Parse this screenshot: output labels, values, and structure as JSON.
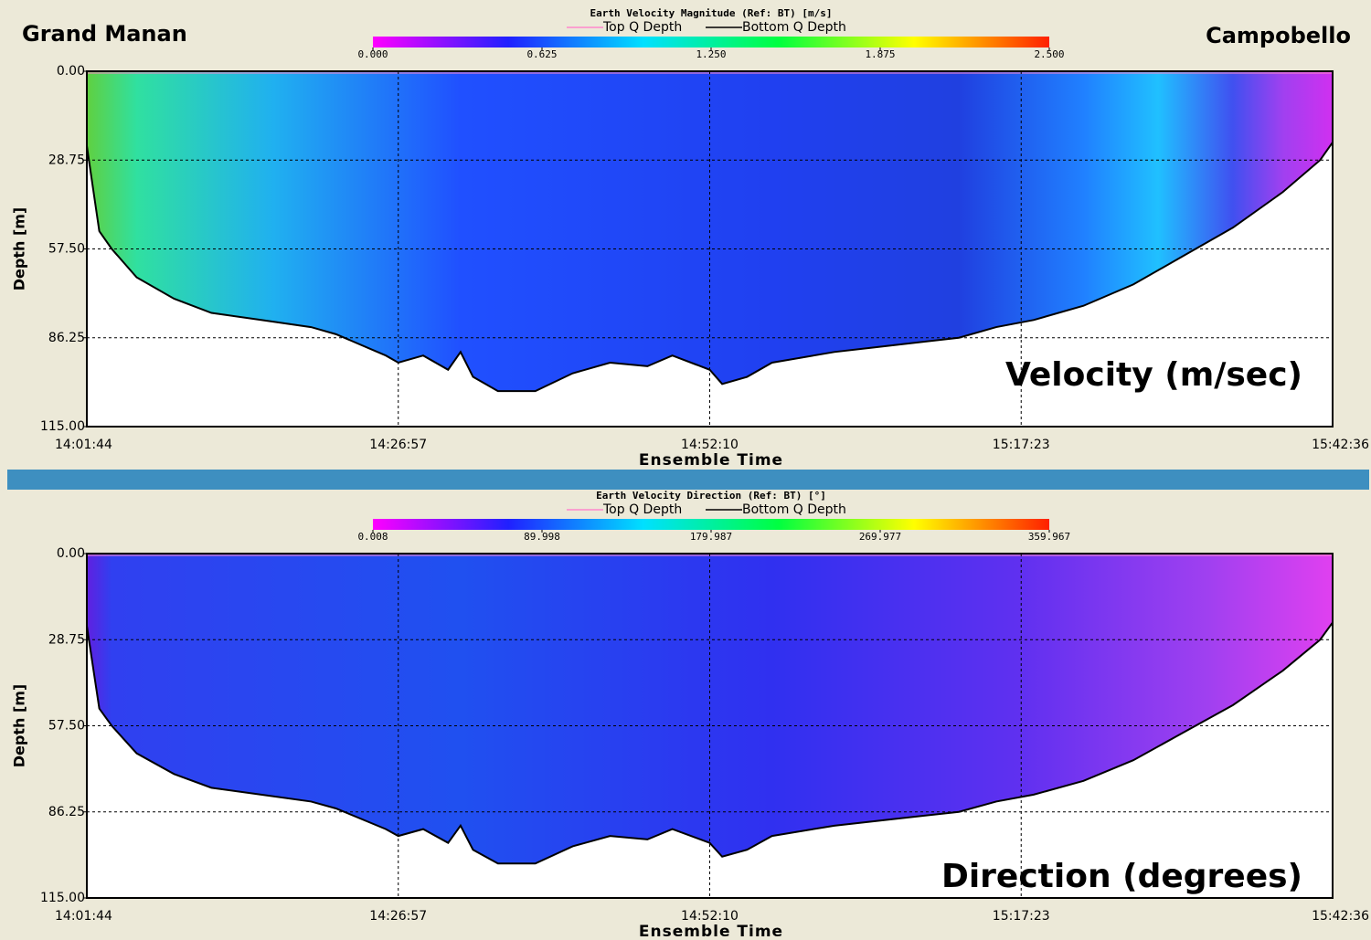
{
  "header": {
    "left": "Grand Manan",
    "right": "Campobello"
  },
  "chart_data": [
    {
      "type": "heatmap",
      "title": "Earth Velocity Magnitude (Ref: BT) [m/s]",
      "annotation": "Velocity (m/sec)",
      "x_label": "Ensemble Time",
      "y_label": "Depth [m]",
      "xticks": [
        "14:01:44",
        "14:26:57",
        "14:52:10",
        "15:17:23",
        "15:42:36"
      ],
      "ylim": [
        0,
        115
      ],
      "yticks": [
        {
          "value": 0,
          "label": "0.00"
        },
        28.75,
        {
          "value": 57.5,
          "label": "57.50"
        },
        86.25,
        {
          "value": 115,
          "label": "115.00"
        }
      ],
      "y_inverted": true,
      "grid": true,
      "series": [
        {
          "name": "Top Q Depth",
          "color": "#ff88cc"
        },
        {
          "name": "Bottom Q Depth",
          "color": "#000000"
        }
      ],
      "colorbar": {
        "lim": [
          0,
          2.5
        ],
        "ticks": [
          {
            "value": 0,
            "label": "0.000"
          },
          0.625,
          {
            "value": 1.25,
            "label": "1.250"
          },
          1.875,
          {
            "value": 2.5,
            "label": "2.500"
          }
        ],
        "colors": [
          "#ff00ff",
          "#2020ff",
          "#00e0ff",
          "#00ff40",
          "#ffff00",
          "#ff2000"
        ]
      }
    },
    {
      "type": "heatmap",
      "title": "Earth Velocity Direction (Ref: BT) [°]",
      "annotation": "Direction (degrees)",
      "x_label": "Ensemble Time",
      "y_label": "Depth [m]",
      "xticks": [
        "14:01:44",
        "14:26:57",
        "14:52:10",
        "15:17:23",
        "15:42:36"
      ],
      "ylim": [
        0,
        115
      ],
      "yticks": [
        {
          "value": 0,
          "label": "0.00"
        },
        28.75,
        {
          "value": 57.5,
          "label": "57.50"
        },
        86.25,
        {
          "value": 115,
          "label": "115.00"
        }
      ],
      "y_inverted": true,
      "grid": true,
      "series": [
        {
          "name": "Top Q Depth",
          "color": "#ff88cc"
        },
        {
          "name": "Bottom Q Depth",
          "color": "#000000"
        }
      ],
      "colorbar": {
        "lim": [
          0.008,
          359.967
        ],
        "ticks": [
          0.008,
          89.998,
          179.987,
          269.977,
          359.967
        ],
        "colors": [
          "#ff00ff",
          "#2020ff",
          "#00e0ff",
          "#00ff40",
          "#ffff00",
          "#ff2000"
        ]
      }
    }
  ]
}
